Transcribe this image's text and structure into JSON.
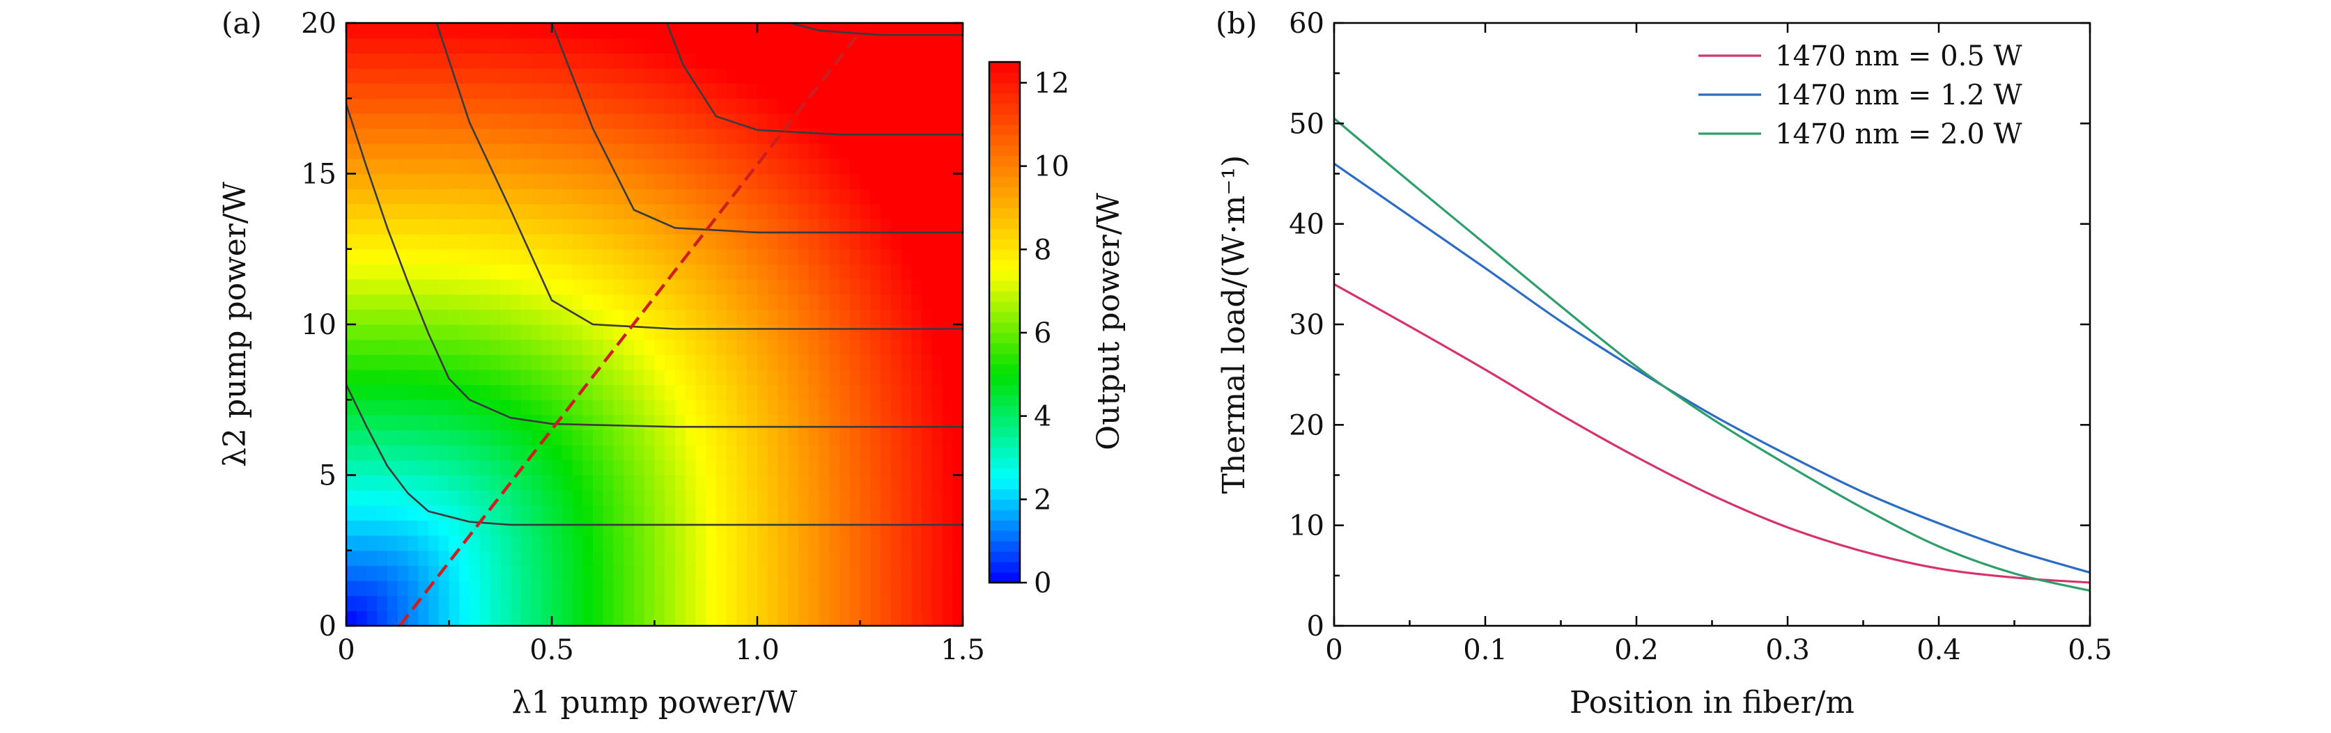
{
  "chart_data": [
    {
      "panel": "(a)",
      "type": "heatmap",
      "xlabel": "λ1 pump power/W",
      "ylabel": "λ2 pump power/W",
      "xlim": [
        0,
        1.5
      ],
      "ylim": [
        0,
        20
      ],
      "xticks": [
        0,
        0.5,
        1.0,
        1.5
      ],
      "xtick_labels": [
        "0",
        "0.5",
        "1.0",
        "1.5"
      ],
      "yticks": [
        0,
        5,
        10,
        15,
        20
      ],
      "ytick_labels": [
        "0",
        "5",
        "10",
        "15",
        "20"
      ],
      "colorbar": {
        "label": "Output power/W",
        "range": [
          0,
          12.5
        ],
        "ticks": [
          0,
          2,
          4,
          6,
          8,
          10,
          12
        ],
        "tick_labels": [
          "0",
          "2",
          "4",
          "6",
          "8",
          "10",
          "12"
        ],
        "colormap": [
          "#0000ff",
          "#00ffff",
          "#00e000",
          "#ffff00",
          "#ff8000",
          "#ff0000"
        ]
      },
      "contours": [
        {
          "level": 2,
          "points": [
            [
              0,
              8.0
            ],
            [
              0.05,
              6.6
            ],
            [
              0.1,
              5.3
            ],
            [
              0.15,
              4.4
            ],
            [
              0.2,
              3.8
            ],
            [
              0.3,
              3.45
            ],
            [
              0.4,
              3.35
            ],
            [
              0.6,
              3.35
            ],
            [
              1.0,
              3.35
            ],
            [
              1.5,
              3.35
            ]
          ]
        },
        {
          "level": 4,
          "points": [
            [
              0,
              17.3
            ],
            [
              0.05,
              15.2
            ],
            [
              0.1,
              13.2
            ],
            [
              0.15,
              11.4
            ],
            [
              0.2,
              9.7
            ],
            [
              0.25,
              8.2
            ],
            [
              0.3,
              7.5
            ],
            [
              0.4,
              6.9
            ],
            [
              0.5,
              6.7
            ],
            [
              0.8,
              6.6
            ],
            [
              1.5,
              6.6
            ]
          ]
        },
        {
          "level": 6,
          "points": [
            [
              0.22,
              20
            ],
            [
              0.3,
              16.7
            ],
            [
              0.4,
              13.8
            ],
            [
              0.5,
              10.8
            ],
            [
              0.6,
              10.0
            ],
            [
              0.8,
              9.85
            ],
            [
              1.5,
              9.85
            ]
          ]
        },
        {
          "level": 8,
          "points": [
            [
              0.5,
              20
            ],
            [
              0.6,
              16.5
            ],
            [
              0.7,
              13.8
            ],
            [
              0.8,
              13.2
            ],
            [
              1.0,
              13.05
            ],
            [
              1.5,
              13.05
            ]
          ]
        },
        {
          "level": 10,
          "points": [
            [
              0.78,
              20
            ],
            [
              0.82,
              18.6
            ],
            [
              0.9,
              16.9
            ],
            [
              1.0,
              16.45
            ],
            [
              1.2,
              16.3
            ],
            [
              1.5,
              16.3
            ]
          ]
        },
        {
          "level": 12,
          "points": [
            [
              1.08,
              20
            ],
            [
              1.15,
              19.75
            ],
            [
              1.3,
              19.6
            ],
            [
              1.5,
              19.6
            ]
          ]
        }
      ],
      "reference_line": {
        "style": "dashed",
        "color": "#cc1f1f",
        "points": [
          [
            0.13,
            0
          ],
          [
            1.25,
            19.7
          ]
        ]
      }
    },
    {
      "panel": "(b)",
      "type": "line",
      "xlabel": "Position in fiber/m",
      "ylabel": "Thermal load/(W·m⁻¹)",
      "xlim": [
        0,
        0.5
      ],
      "ylim": [
        0,
        60
      ],
      "xticks": [
        0,
        0.1,
        0.2,
        0.3,
        0.4,
        0.5
      ],
      "xtick_labels": [
        "0",
        "0.1",
        "0.2",
        "0.3",
        "0.4",
        "0.5"
      ],
      "yticks": [
        0,
        10,
        20,
        30,
        40,
        50,
        60
      ],
      "ytick_labels": [
        "0",
        "10",
        "20",
        "30",
        "40",
        "50",
        "60"
      ],
      "legend_position": "top-right",
      "x": [
        0,
        0.05,
        0.1,
        0.15,
        0.2,
        0.25,
        0.3,
        0.35,
        0.4,
        0.45,
        0.5
      ],
      "series": [
        {
          "name": "1470 nm = 0.5 W",
          "color": "#d6336c",
          "values": [
            34.0,
            29.8,
            25.5,
            21.0,
            16.8,
            13.0,
            9.8,
            7.4,
            5.7,
            4.8,
            4.3
          ]
        },
        {
          "name": "1470 nm = 1.2 W",
          "color": "#2b6cc4",
          "values": [
            46.0,
            40.8,
            35.6,
            30.3,
            25.5,
            21.0,
            17.0,
            13.3,
            10.2,
            7.5,
            5.3
          ]
        },
        {
          "name": "1470 nm = 2.0 W",
          "color": "#2e9e6a",
          "values": [
            50.5,
            44.2,
            38.0,
            31.8,
            25.8,
            20.6,
            16.0,
            11.7,
            7.9,
            5.2,
            3.5
          ]
        }
      ]
    }
  ]
}
